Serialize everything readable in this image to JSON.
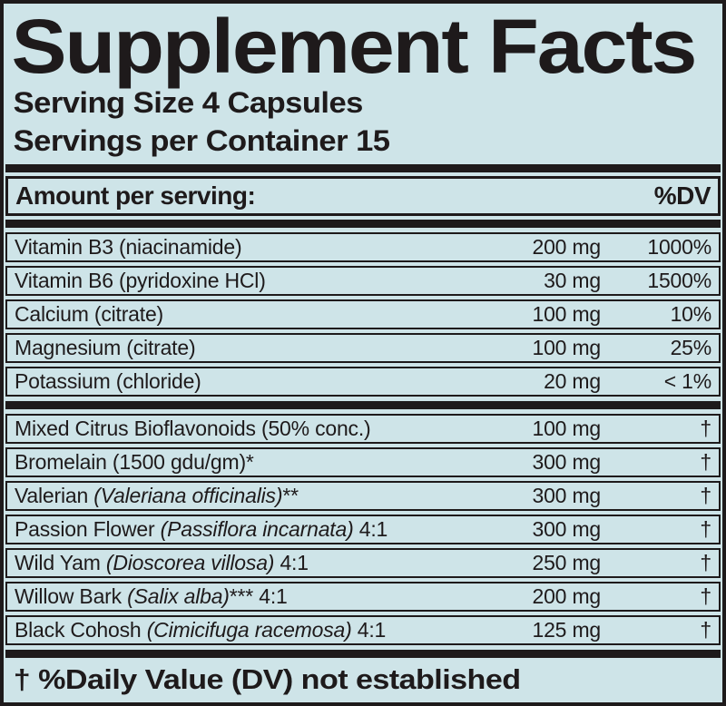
{
  "label": {
    "title": "Supplement Facts",
    "serving_size": "Serving Size 4 Capsules",
    "servings_per_container": "Servings per Container 15",
    "colors": {
      "background": "#cee4e8",
      "ink": "#1e1a1b"
    },
    "header": {
      "amount_label": "Amount per serving:",
      "dv_label": "%DV"
    },
    "nutrients": [
      {
        "name_pre": "Vitamin B3 (niacinamide)",
        "name_italic": "",
        "name_post": "",
        "amount": "200 mg",
        "dv": "1000%"
      },
      {
        "name_pre": "Vitamin B6 (pyridoxine HCl)",
        "name_italic": "",
        "name_post": "",
        "amount": "30 mg",
        "dv": "1500%"
      },
      {
        "name_pre": "Calcium (citrate)",
        "name_italic": "",
        "name_post": "",
        "amount": "100 mg",
        "dv": "10%"
      },
      {
        "name_pre": "Magnesium (citrate)",
        "name_italic": "",
        "name_post": "",
        "amount": "100 mg",
        "dv": "25%"
      },
      {
        "name_pre": "Potassium (chloride)",
        "name_italic": "",
        "name_post": "",
        "amount": "20 mg",
        "dv": "< 1%"
      }
    ],
    "botanicals": [
      {
        "name_pre": "Mixed Citrus Bioflavonoids (50% conc.)",
        "name_italic": "",
        "name_post": "",
        "amount": "100 mg",
        "dv": "†"
      },
      {
        "name_pre": "Bromelain (1500 gdu/gm)*",
        "name_italic": "",
        "name_post": "",
        "amount": "300 mg",
        "dv": "†"
      },
      {
        "name_pre": "Valerian ",
        "name_italic": "(Valeriana officinalis)",
        "name_post": "**",
        "amount": "300 mg",
        "dv": "†"
      },
      {
        "name_pre": "Passion Flower ",
        "name_italic": "(Passiflora incarnata)",
        "name_post": " 4:1",
        "amount": "300 mg",
        "dv": "†"
      },
      {
        "name_pre": "Wild Yam ",
        "name_italic": "(Dioscorea villosa)",
        "name_post": " 4:1",
        "amount": "250 mg",
        "dv": "†"
      },
      {
        "name_pre": "Willow Bark ",
        "name_italic": "(Salix alba)",
        "name_post": "*** 4:1",
        "amount": "200 mg",
        "dv": "†"
      },
      {
        "name_pre": "Black Cohosh ",
        "name_italic": "(Cimicifuga racemosa)",
        "name_post": " 4:1",
        "amount": "125 mg",
        "dv": "†"
      }
    ],
    "footnote": "† %Daily Value (DV) not established"
  }
}
